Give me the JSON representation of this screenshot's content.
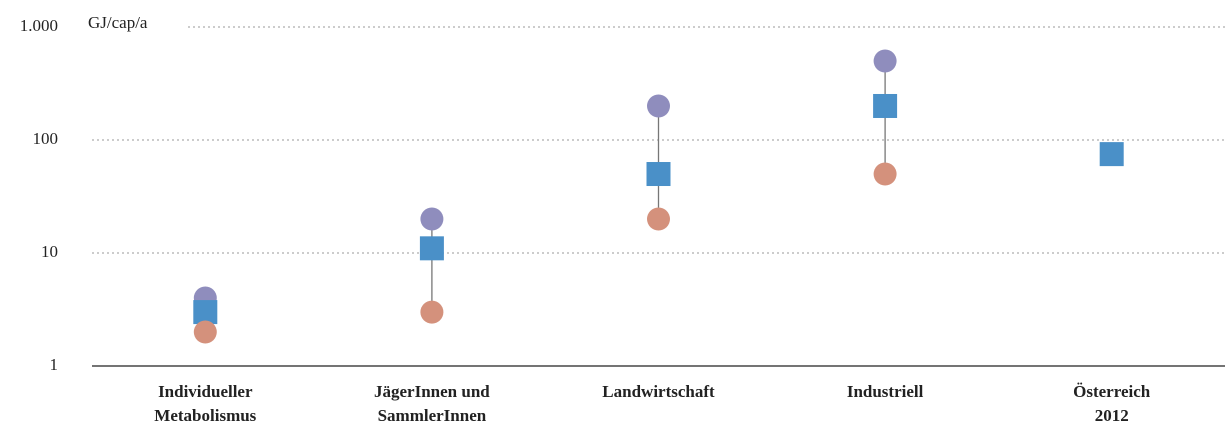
{
  "chart_data": {
    "type": "range-dot",
    "ylabel": "GJ/cap/a",
    "categories": [
      "Individueller\nMetabolismus",
      "JägerInnen und\nSammlerInnen",
      "Landwirtschaft",
      "Industriell",
      "Österreich\n2012"
    ],
    "series": [
      {
        "color": "#8f8dbd",
        "marker": "circle",
        "values": [
          4,
          20,
          200,
          500,
          null
        ]
      },
      {
        "color": "#4a90c8",
        "marker": "square",
        "values": [
          3,
          11,
          50,
          200,
          75
        ]
      },
      {
        "color": "#d4917c",
        "marker": "circle",
        "values": [
          2,
          3,
          20,
          50,
          null
        ]
      }
    ],
    "log_scale": true,
    "ylim": [
      1,
      1000
    ],
    "yticks": [
      1,
      10,
      100,
      {
        "value": 1000,
        "label": "1.000"
      }
    ],
    "grid": true
  }
}
